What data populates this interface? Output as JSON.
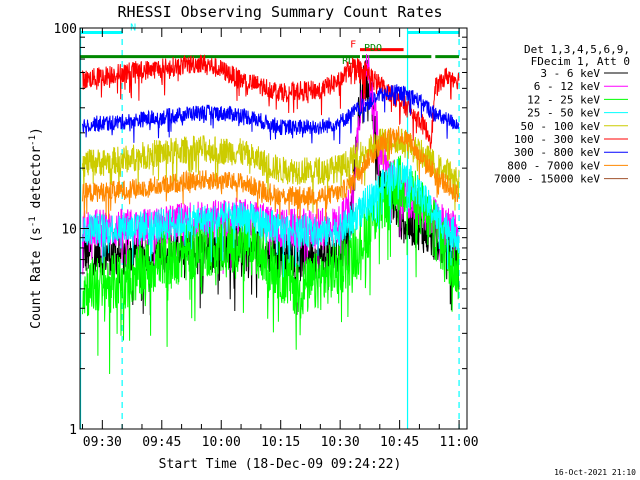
{
  "chart_data": {
    "type": "line",
    "title": "RHESSI Observing Summary Count Rates",
    "xlabel": "Start Time (18-Dec-09 09:24:22)",
    "ylabel": "Count Rate (s",
    "ylabel_sup": "-1",
    "ylabel_tail": " detector",
    "ylabel_sup2": "-1",
    "ylabel_close": ")",
    "yscale": "log",
    "ylim": [
      1,
      100
    ],
    "xlim": [
      "09:24:22",
      "11:02"
    ],
    "yticks": [
      "1",
      "10",
      "100"
    ],
    "xticks": [
      "09:30",
      "09:45",
      "10:00",
      "10:15",
      "10:30",
      "10:45",
      "11:00"
    ],
    "legend_header": [
      "Det 1,3,4,5,6,9,",
      "FDecim 1, Att 0"
    ],
    "legend_placement": "right",
    "timestamp": "16-Oct-2021 21:10",
    "series": [
      {
        "name": "3 - 6 keV",
        "color": "#000000",
        "x": [
          "09:25",
          "09:40",
          "09:55",
          "10:05",
          "10:15",
          "10:25",
          "10:30",
          "10:33",
          "10:35",
          "10:37",
          "10:40",
          "10:45",
          "10:50",
          "10:55",
          "11:00"
        ],
        "values": [
          7.5,
          7.5,
          7.9,
          8.2,
          7.4,
          7.2,
          7.6,
          12,
          45,
          60,
          18,
          11,
          10,
          8.5,
          7
        ]
      },
      {
        "name": "6 - 12 keV",
        "color": "#ff00ff",
        "x": [
          "09:25",
          "09:40",
          "09:55",
          "10:05",
          "10:15",
          "10:25",
          "10:30",
          "10:33",
          "10:35",
          "10:37",
          "10:40",
          "10:45",
          "10:50",
          "10:55",
          "11:00"
        ],
        "values": [
          10,
          10,
          11,
          11.5,
          10,
          10,
          10.5,
          14,
          40,
          65,
          25,
          15,
          13,
          11,
          9.5
        ]
      },
      {
        "name": "12 - 25 keV",
        "color": "#00ff00",
        "x": [
          "09:25",
          "09:35",
          "09:45",
          "09:55",
          "10:05",
          "10:10",
          "10:15",
          "10:20",
          "10:25",
          "10:30",
          "10:33",
          "10:36",
          "10:40",
          "10:44",
          "10:47",
          "10:50",
          "10:55",
          "11:00"
        ],
        "values": [
          5,
          5.5,
          7,
          8,
          8.5,
          7.5,
          6,
          5,
          5.5,
          6.5,
          7.5,
          9,
          13,
          17,
          16,
          13,
          9,
          6
        ]
      },
      {
        "name": "25 - 50 keV",
        "color": "#00ffff",
        "x": [
          "09:25",
          "09:35",
          "09:45",
          "09:55",
          "10:05",
          "10:15",
          "10:25",
          "10:30",
          "10:33",
          "10:36",
          "10:40",
          "10:44",
          "10:47",
          "10:50",
          "10:55",
          "11:00"
        ],
        "values": [
          10,
          10,
          10.5,
          11,
          11.5,
          10,
          9.5,
          9.8,
          11,
          13,
          16,
          19,
          18,
          15,
          11,
          9
        ]
      },
      {
        "name": "50 - 100 keV",
        "color": "#cccc00",
        "x": [
          "09:25",
          "09:35",
          "09:45",
          "09:55",
          "10:05",
          "10:15",
          "10:25",
          "10:30",
          "10:33",
          "10:36",
          "10:40",
          "10:44",
          "10:47",
          "10:50",
          "10:55",
          "11:00"
        ],
        "values": [
          21,
          22,
          24,
          25,
          24,
          19.5,
          19.5,
          20,
          22,
          24,
          27,
          28,
          26,
          24,
          20,
          18
        ]
      },
      {
        "name": "100 - 300 keV",
        "color": "#ff0000",
        "x": [
          "09:25",
          "09:35",
          "09:45",
          "09:55",
          "10:00",
          "10:05",
          "10:15",
          "10:25",
          "10:30",
          "10:33",
          "10:36",
          "10:40",
          "10:44",
          "10:47",
          "10:50",
          "10:53",
          "10:54",
          "10:57",
          "11:00"
        ],
        "values": [
          55,
          60,
          63,
          67,
          62,
          55,
          48,
          49,
          55,
          65,
          62,
          52,
          45,
          40,
          35,
          28,
          50,
          58,
          55
        ]
      },
      {
        "name": "300 - 800 keV",
        "color": "#0000ff",
        "x": [
          "09:25",
          "09:35",
          "09:45",
          "09:55",
          "10:05",
          "10:15",
          "10:25",
          "10:30",
          "10:35",
          "10:40",
          "10:44",
          "10:48",
          "10:52",
          "10:55",
          "11:00"
        ],
        "values": [
          33,
          34,
          36,
          38,
          37,
          32,
          32,
          34,
          40,
          46,
          48,
          46,
          40,
          36,
          33
        ]
      },
      {
        "name": "800 - 7000 keV",
        "color": "#ff8800",
        "x": [
          "09:25",
          "09:35",
          "09:45",
          "09:55",
          "10:05",
          "10:15",
          "10:25",
          "10:30",
          "10:33",
          "10:36",
          "10:40",
          "10:44",
          "10:47",
          "10:50",
          "10:55",
          "11:00"
        ],
        "values": [
          15,
          15.5,
          16.5,
          17.5,
          17,
          14.5,
          14.5,
          15,
          17,
          21,
          26,
          30,
          28,
          23,
          18,
          14.5
        ]
      },
      {
        "name": "7000 - 15000 keV",
        "color": "#a0522d",
        "x": [],
        "values": []
      }
    ],
    "flags": [
      {
        "label": "N",
        "color": "#00ffff",
        "y": 95,
        "segments": [
          [
            "09:24:30",
            "09:35"
          ],
          [
            "10:47",
            "11:00"
          ]
        ],
        "labels_at": [
          [
            "09:37",
            97
          ]
        ]
      },
      {
        "label": "F",
        "color": "#ff0000",
        "y": 78,
        "segments": [
          [
            "10:35",
            "10:46"
          ]
        ],
        "labels_at": [
          [
            "10:32:30",
            80
          ]
        ]
      },
      {
        "label": "RD",
        "color": "#008800",
        "y": 72,
        "segments": [
          [
            "09:24:30",
            "10:35"
          ],
          [
            "10:35:30",
            "10:53"
          ],
          [
            "10:54",
            "11:00"
          ]
        ],
        "labels_at": [
          [
            "10:30:30",
            66
          ]
        ]
      },
      {
        "label": "PDO",
        "color": "#008800",
        "y": 72,
        "segments": [],
        "labels_at": [
          [
            "10:36",
            77
          ]
        ]
      }
    ],
    "vlines": [
      {
        "x": "09:24:30",
        "color": "#00ffff",
        "style": "solid"
      },
      {
        "x": "09:35",
        "color": "#00ffff",
        "style": "dashed"
      },
      {
        "x": "10:47",
        "color": "#00ffff",
        "style": "solid"
      },
      {
        "x": "11:00",
        "color": "#00ffff",
        "style": "dashed"
      }
    ]
  }
}
